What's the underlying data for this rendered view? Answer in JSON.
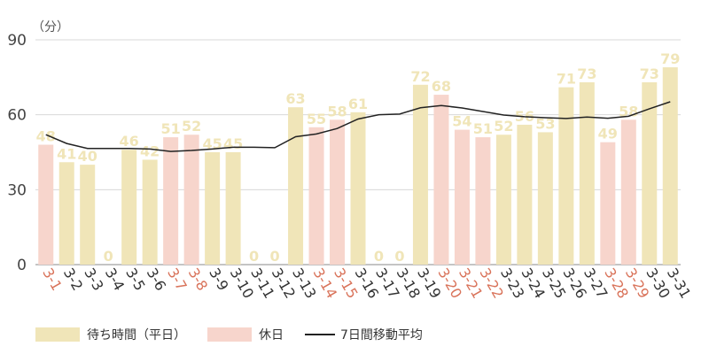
{
  "chart_data": {
    "type": "bar",
    "unit_label": "（分）",
    "categories": [
      "3-1",
      "3-2",
      "3-3",
      "3-4",
      "3-5",
      "3-6",
      "3-7",
      "3-8",
      "3-9",
      "3-10",
      "3-11",
      "3-12",
      "3-13",
      "3-14",
      "3-15",
      "3-16",
      "3-17",
      "3-18",
      "3-19",
      "3-20",
      "3-21",
      "3-22",
      "3-23",
      "3-24",
      "3-25",
      "3-26",
      "3-27",
      "3-28",
      "3-29",
      "3-30",
      "3-31"
    ],
    "values": [
      48,
      41,
      40,
      0,
      46,
      42,
      51,
      52,
      45,
      45,
      0,
      0,
      63,
      55,
      58,
      61,
      0,
      0,
      72,
      68,
      54,
      51,
      52,
      56,
      53,
      71,
      73,
      49,
      58,
      73,
      79
    ],
    "holiday": [
      true,
      false,
      false,
      false,
      false,
      false,
      true,
      true,
      false,
      false,
      false,
      false,
      false,
      true,
      true,
      false,
      false,
      false,
      false,
      true,
      true,
      true,
      false,
      false,
      false,
      false,
      false,
      true,
      true,
      false,
      false
    ],
    "moving_average": [
      52,
      48.5,
      46.5,
      46.5,
      46.5,
      46.3,
      45.3,
      45.7,
      46.3,
      47,
      47,
      46.8,
      51.2,
      52.3,
      54.5,
      58.3,
      60,
      60.3,
      62.8,
      63.7,
      62.7,
      61.3,
      59.9,
      59.2,
      58.8,
      58.5,
      59.1,
      58.6,
      59.4,
      62.4,
      65.2
    ],
    "series": [
      {
        "name": "待ち時間（平日）",
        "color": "#f0e5b8"
      },
      {
        "name": "休日",
        "color": "#f7d5cc"
      },
      {
        "name": "7日間移動平均",
        "color": "#222222"
      }
    ],
    "ylim": [
      0,
      90
    ],
    "yticks": [
      0,
      30,
      60,
      90
    ],
    "grid": true,
    "legend_position": "bottom",
    "colors": {
      "value_label": "#f0e5b8",
      "holiday_tick": "#d9735a",
      "weekday_tick": "#333333"
    }
  }
}
